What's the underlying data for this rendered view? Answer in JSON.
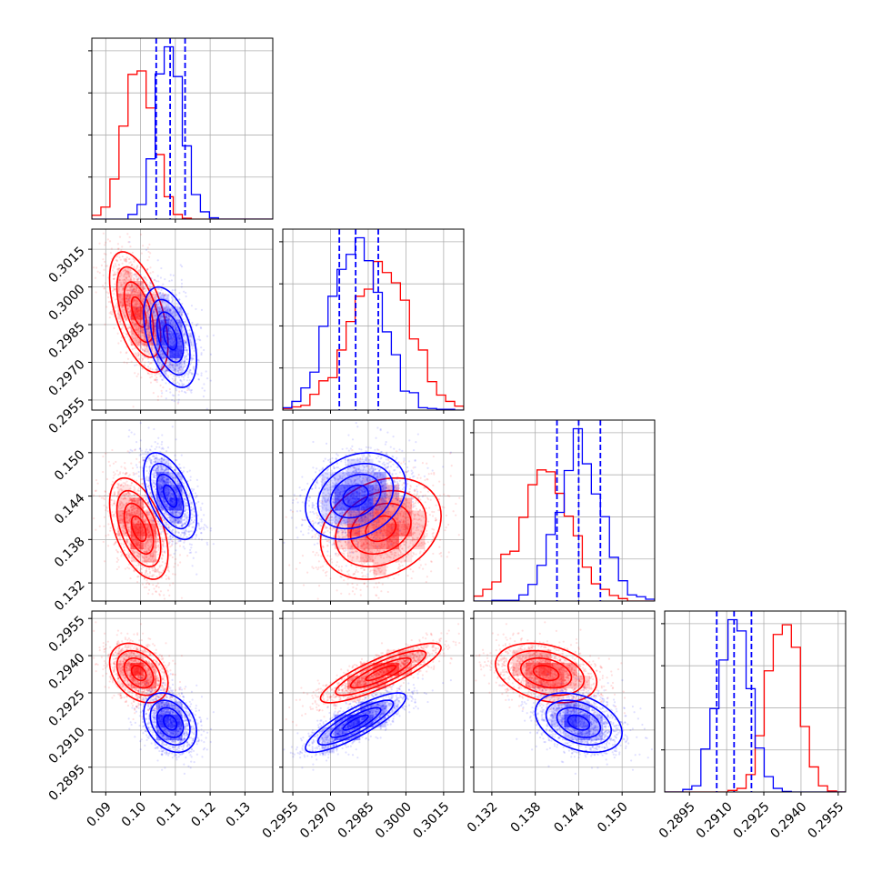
{
  "chart_data": {
    "type": "corner",
    "grid": true,
    "legend": "none",
    "colors": {
      "red": "#ff0000",
      "blue": "#0000ff",
      "grid": "#b0b0b0",
      "axis": "#000000"
    },
    "parameters": [
      {
        "index": 0,
        "range": [
          0.086,
          0.138
        ],
        "ticks": [
          0.09,
          0.1,
          0.11,
          0.12,
          0.13
        ],
        "tick_labels": [
          "0.09",
          "0.10",
          "0.11",
          "0.12",
          "0.13"
        ]
      },
      {
        "index": 1,
        "range": [
          0.2951,
          0.3023
        ],
        "ticks": [
          0.2955,
          0.297,
          0.2985,
          0.3,
          0.3015
        ],
        "tick_labels": [
          "0.2955",
          "0.2970",
          "0.2985",
          "0.3000",
          "0.3015"
        ]
      },
      {
        "index": 2,
        "range": [
          0.1295,
          0.1545
        ],
        "ticks": [
          0.132,
          0.138,
          0.144,
          0.15
        ],
        "tick_labels": [
          "0.132",
          "0.138",
          "0.144",
          "0.150"
        ]
      },
      {
        "index": 3,
        "range": [
          0.2885,
          0.2958
        ],
        "ticks": [
          0.2895,
          0.291,
          0.2925,
          0.294,
          0.2955
        ],
        "tick_labels": [
          "0.2895",
          "0.2910",
          "0.2925",
          "0.2940",
          "0.2955"
        ]
      }
    ],
    "series": [
      {
        "color": "#ff0000",
        "samples": [
          {
            "mean": 0.0995,
            "sd": 0.0042
          },
          {
            "mean": 0.299,
            "sd": 0.0012
          },
          {
            "mean": 0.1395,
            "sd": 0.0035
          },
          {
            "mean": 0.2933,
            "sd": 0.0006
          }
        ],
        "correlations": [
          [
            0,
            1,
            -0.55
          ],
          [
            0,
            2,
            -0.5
          ],
          [
            0,
            3,
            -0.35
          ],
          [
            1,
            2,
            0.25
          ],
          [
            1,
            3,
            0.85
          ],
          [
            2,
            3,
            -0.3
          ]
        ],
        "quantiles": []
      },
      {
        "color": "#0000ff",
        "samples": [
          {
            "mean": 0.1085,
            "sd": 0.0038
          },
          {
            "mean": 0.298,
            "sd": 0.001
          },
          {
            "mean": 0.144,
            "sd": 0.003
          },
          {
            "mean": 0.2913,
            "sd": 0.0006
          }
        ],
        "correlations": [
          [
            0,
            1,
            -0.45
          ],
          [
            0,
            2,
            -0.55
          ],
          [
            0,
            3,
            -0.3
          ],
          [
            1,
            2,
            0.25
          ],
          [
            1,
            3,
            0.85
          ],
          [
            2,
            3,
            -0.35
          ]
        ],
        "quantiles": [
          [
            0.1045,
            0.1085,
            0.1128
          ],
          [
            0.29735,
            0.298,
            0.2989
          ],
          [
            0.141,
            0.144,
            0.147
          ],
          [
            0.2906,
            0.2913,
            0.292
          ]
        ]
      }
    ]
  }
}
